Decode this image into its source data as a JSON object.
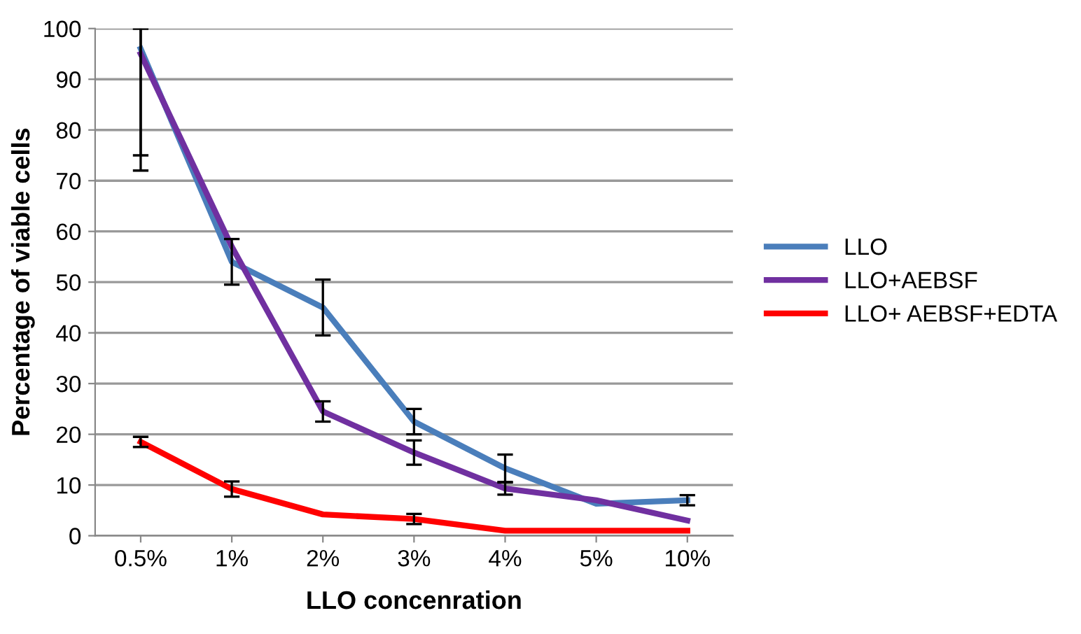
{
  "chart_data": {
    "type": "line",
    "xlabel": "LLO concenration",
    "ylabel": "Percentage of viable cells",
    "categories": [
      "0.5%",
      "1%",
      "2%",
      "3%",
      "4%",
      "5%",
      "10%"
    ],
    "series": [
      {
        "name": "LLO",
        "color": "#4a7ebb",
        "values": [
          96,
          54,
          45,
          22.5,
          13.3,
          6.3,
          7
        ],
        "errors": [
          [
            75,
            100
          ],
          4.5,
          5.5,
          2.5,
          2.7,
          null,
          1
        ]
      },
      {
        "name": "LLO+AEBSF",
        "color": "#7030a0",
        "values": [
          95,
          57,
          24.5,
          16.4,
          9.3,
          7,
          3
        ],
        "errors": [
          [
            72,
            100
          ],
          null,
          2,
          2.4,
          1.2,
          null,
          null
        ]
      },
      {
        "name": "LLO+ AEBSF+EDTA",
        "color": "#ff0000",
        "values": [
          18.5,
          9.2,
          4.2,
          3.3,
          1,
          1,
          1
        ],
        "errors": [
          1,
          1.5,
          null,
          1,
          null,
          null,
          null
        ]
      }
    ],
    "ylim": [
      0,
      100
    ],
    "yticks": [
      0,
      10,
      20,
      30,
      40,
      50,
      60,
      70,
      80,
      90,
      100
    ],
    "grid": "y",
    "legend": "right",
    "marker": "none",
    "line_style": "solid"
  }
}
